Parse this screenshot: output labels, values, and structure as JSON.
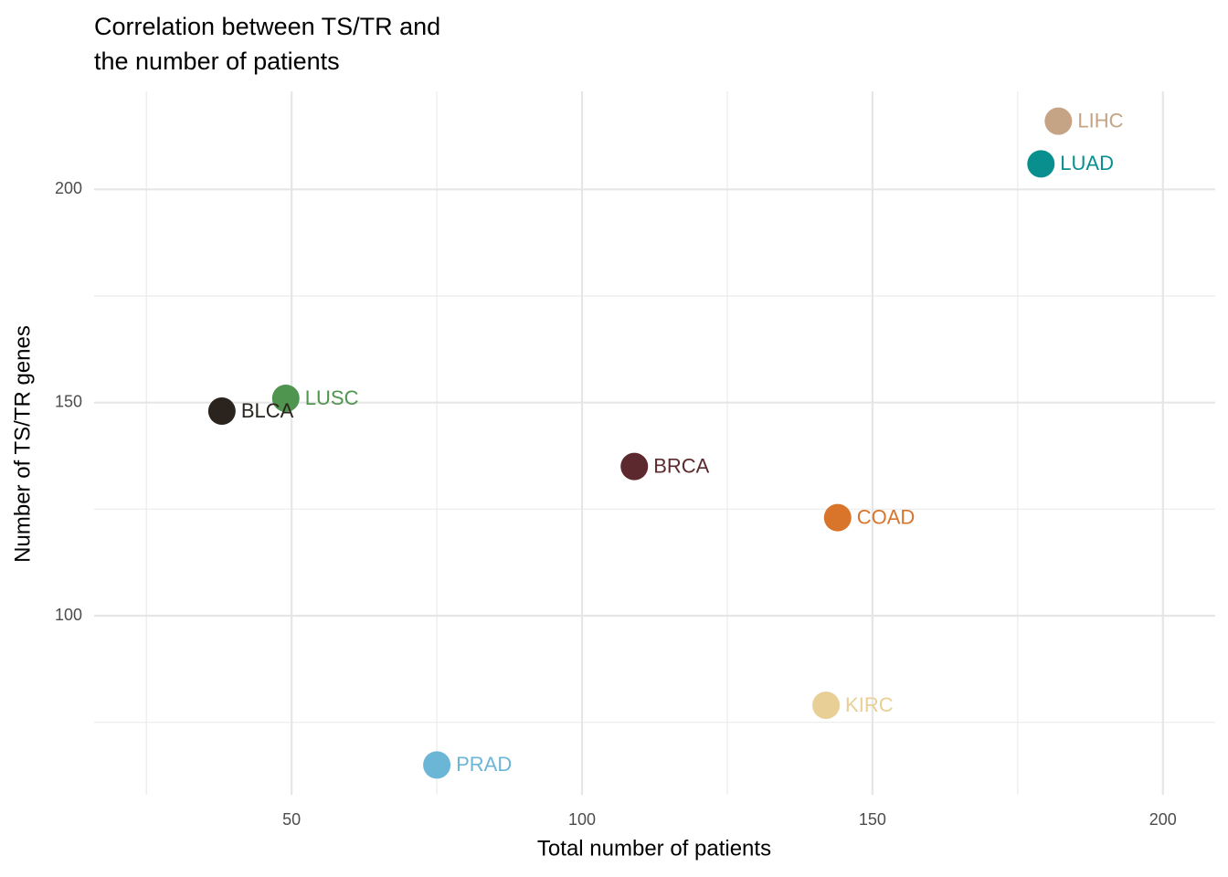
{
  "chart_data": {
    "type": "scatter",
    "title_lines": [
      "Correlation between TS/TR and",
      "the number of patients"
    ],
    "x_label": "Total number of patients",
    "y_label": "Number of TS/TR genes",
    "labels": [
      "LIHC",
      "LUAD",
      "LUSC",
      "BLCA",
      "BRCA",
      "COAD",
      "KIRC",
      "PRAD"
    ],
    "x": [
      182,
      179,
      49,
      38,
      109,
      144,
      142,
      75
    ],
    "values": [
      216,
      206,
      151,
      148,
      135,
      123,
      79,
      65
    ],
    "colors": [
      "#c4a484",
      "#0a8f8f",
      "#4f944f",
      "#2b241e",
      "#5c2a2e",
      "#d9752a",
      "#e8cf95",
      "#6bb5d6"
    ],
    "xlim": [
      16,
      209
    ],
    "ylim": [
      58,
      223
    ],
    "xticks": [
      50,
      100,
      150,
      200
    ],
    "yticks": [
      100,
      150,
      200
    ],
    "x_minor_ticks": [
      25,
      75,
      125,
      175
    ],
    "y_minor_ticks": [
      75,
      125,
      175
    ],
    "grid": true
  }
}
